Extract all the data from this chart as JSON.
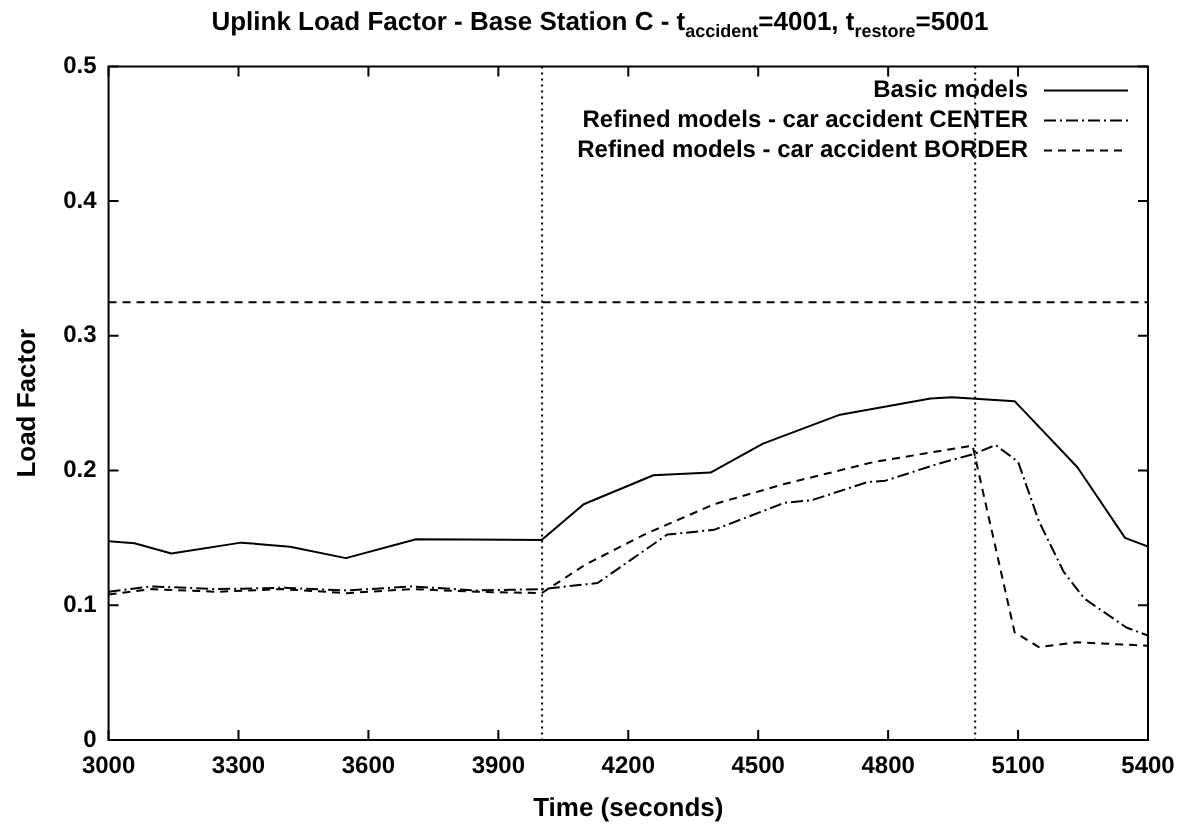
{
  "chart_data": {
    "type": "line",
    "title": "Uplink Load Factor - Base Station C - t$_{accident}$=4001, t$_{restore}$=5001",
    "xlabel": "Time (seconds)",
    "ylabel": "Load Factor",
    "xlim": [
      3000,
      5400
    ],
    "xticks": [
      3000,
      3300,
      3600,
      3900,
      4200,
      4500,
      4800,
      5100,
      5400
    ],
    "ylim": [
      0,
      0.5
    ],
    "yticks": [
      0,
      0.1,
      0.2,
      0.3,
      0.4,
      0.5
    ],
    "grid": false,
    "legend": "top right",
    "marker": "none",
    "series": [
      {
        "name": "Basic models",
        "color": "#000000",
        "line_style": "solid",
        "x": [
          3000,
          3060,
          3145,
          3306,
          3419,
          3548,
          3710,
          4000,
          4097,
          4258,
          4390,
          4511,
          4689,
          4898,
          4947,
          5092,
          5237,
          5347,
          5400
        ],
        "values": [
          0.1475,
          0.146,
          0.1385,
          0.1465,
          0.1435,
          0.135,
          0.149,
          0.1485,
          0.175,
          0.1965,
          0.1985,
          0.22,
          0.2415,
          0.2535,
          0.2545,
          0.2515,
          0.2025,
          0.15,
          0.1435
        ]
      },
      {
        "name": "Refined models - car accident CENTER",
        "color": "#000000",
        "line_style": "dashdot",
        "x": [
          3000,
          3100,
          3250,
          3400,
          3550,
          3700,
          3850,
          4000,
          4129,
          4290,
          4398,
          4560,
          4624,
          4753,
          4794,
          4915,
          5000,
          5048,
          5100,
          5148,
          5205,
          5253,
          5350,
          5400
        ],
        "values": [
          0.11,
          0.114,
          0.112,
          0.113,
          0.111,
          0.114,
          0.111,
          0.112,
          0.1165,
          0.1525,
          0.156,
          0.176,
          0.178,
          0.1915,
          0.1925,
          0.205,
          0.2125,
          0.219,
          0.2065,
          0.1625,
          0.125,
          0.105,
          0.0835,
          0.0775
        ]
      },
      {
        "name": "Refined models - car accident BORDER",
        "color": "#000000",
        "line_style": "dashed",
        "x": [
          3000,
          3100,
          3250,
          3400,
          3550,
          3700,
          3850,
          4000,
          4100,
          4237,
          4398,
          4560,
          4769,
          4995,
          5092,
          5148,
          5237,
          5400
        ],
        "values": [
          0.108,
          0.112,
          0.11,
          0.112,
          0.109,
          0.112,
          0.11,
          0.109,
          0.13,
          0.1525,
          0.175,
          0.19,
          0.2065,
          0.2185,
          0.08,
          0.069,
          0.0725,
          0.07
        ]
      }
    ],
    "ref_lines": [
      {
        "axis": "y",
        "value": 0.325,
        "line_style": "dashed"
      },
      {
        "axis": "x",
        "value": 4001,
        "line_style": "dotted"
      },
      {
        "axis": "x",
        "value": 5001,
        "line_style": "dotted"
      }
    ]
  }
}
